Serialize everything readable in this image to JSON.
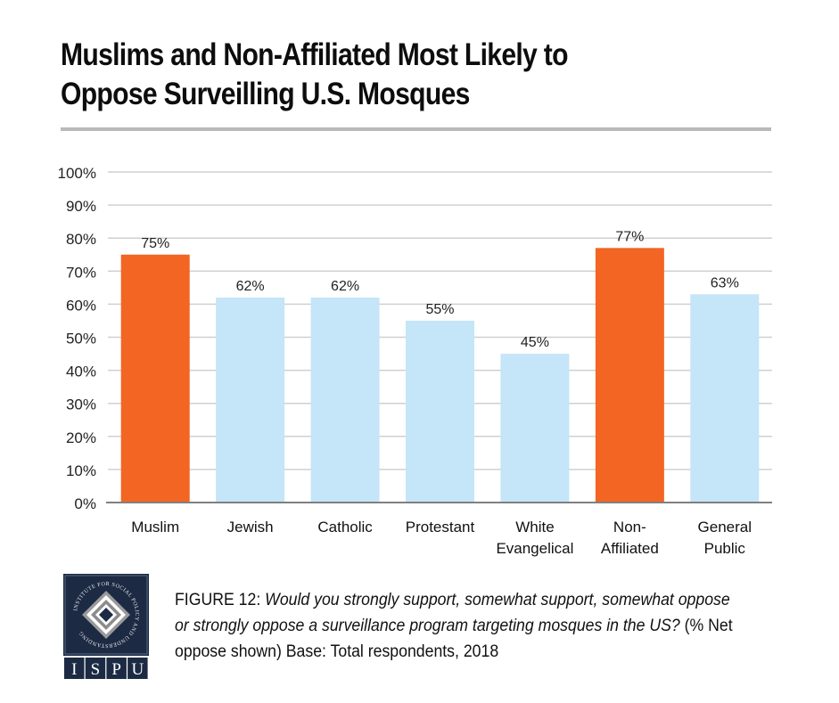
{
  "title_lines": [
    "Muslims and Non-Affiliated Most Likely to",
    "Oppose Surveilling U.S. Mosques"
  ],
  "caption": {
    "figure_label": "FIGURE 12",
    "question": "Would you strongly support, somewhat support, somewhat oppose or strongly oppose a surveillance program targeting mosques in the US?",
    "note": "(% Net oppose shown) Base: Total respondents, 2018"
  },
  "logo": {
    "ring_text": "INSTITUTE FOR SOCIAL POLICY AND UNDERSTANDING",
    "letters": [
      "I",
      "S",
      "P",
      "U"
    ]
  },
  "colors": {
    "highlight": "#f26522",
    "default_bar": "#c5e5f8",
    "gridline": "#d0d0d0",
    "axis": "#808080",
    "logo_navy": "#1c2a44"
  },
  "chart_data": {
    "type": "bar",
    "title": "Muslims and Non-Affiliated Most Likely to Oppose Surveilling U.S. Mosques",
    "xlabel": "",
    "ylabel": "",
    "categories": [
      [
        "Muslim"
      ],
      [
        "Jewish"
      ],
      [
        "Catholic"
      ],
      [
        "Protestant"
      ],
      [
        "White",
        "Evangelical"
      ],
      [
        "Non-",
        "Affiliated"
      ],
      [
        "General",
        "Public"
      ]
    ],
    "values": [
      75,
      62,
      62,
      55,
      45,
      77,
      63
    ],
    "data_labels": [
      "75%",
      "62%",
      "62%",
      "55%",
      "45%",
      "77%",
      "63%"
    ],
    "highlighted": [
      true,
      false,
      false,
      false,
      false,
      true,
      false
    ],
    "ylim": [
      0,
      100
    ],
    "yticks": [
      0,
      10,
      20,
      30,
      40,
      50,
      60,
      70,
      80,
      90,
      100
    ],
    "ytick_labels": [
      "0%",
      "10%",
      "20%",
      "30%",
      "40%",
      "50%",
      "60%",
      "70%",
      "80%",
      "90%",
      "100%"
    ],
    "grid": true,
    "legend": "none"
  }
}
